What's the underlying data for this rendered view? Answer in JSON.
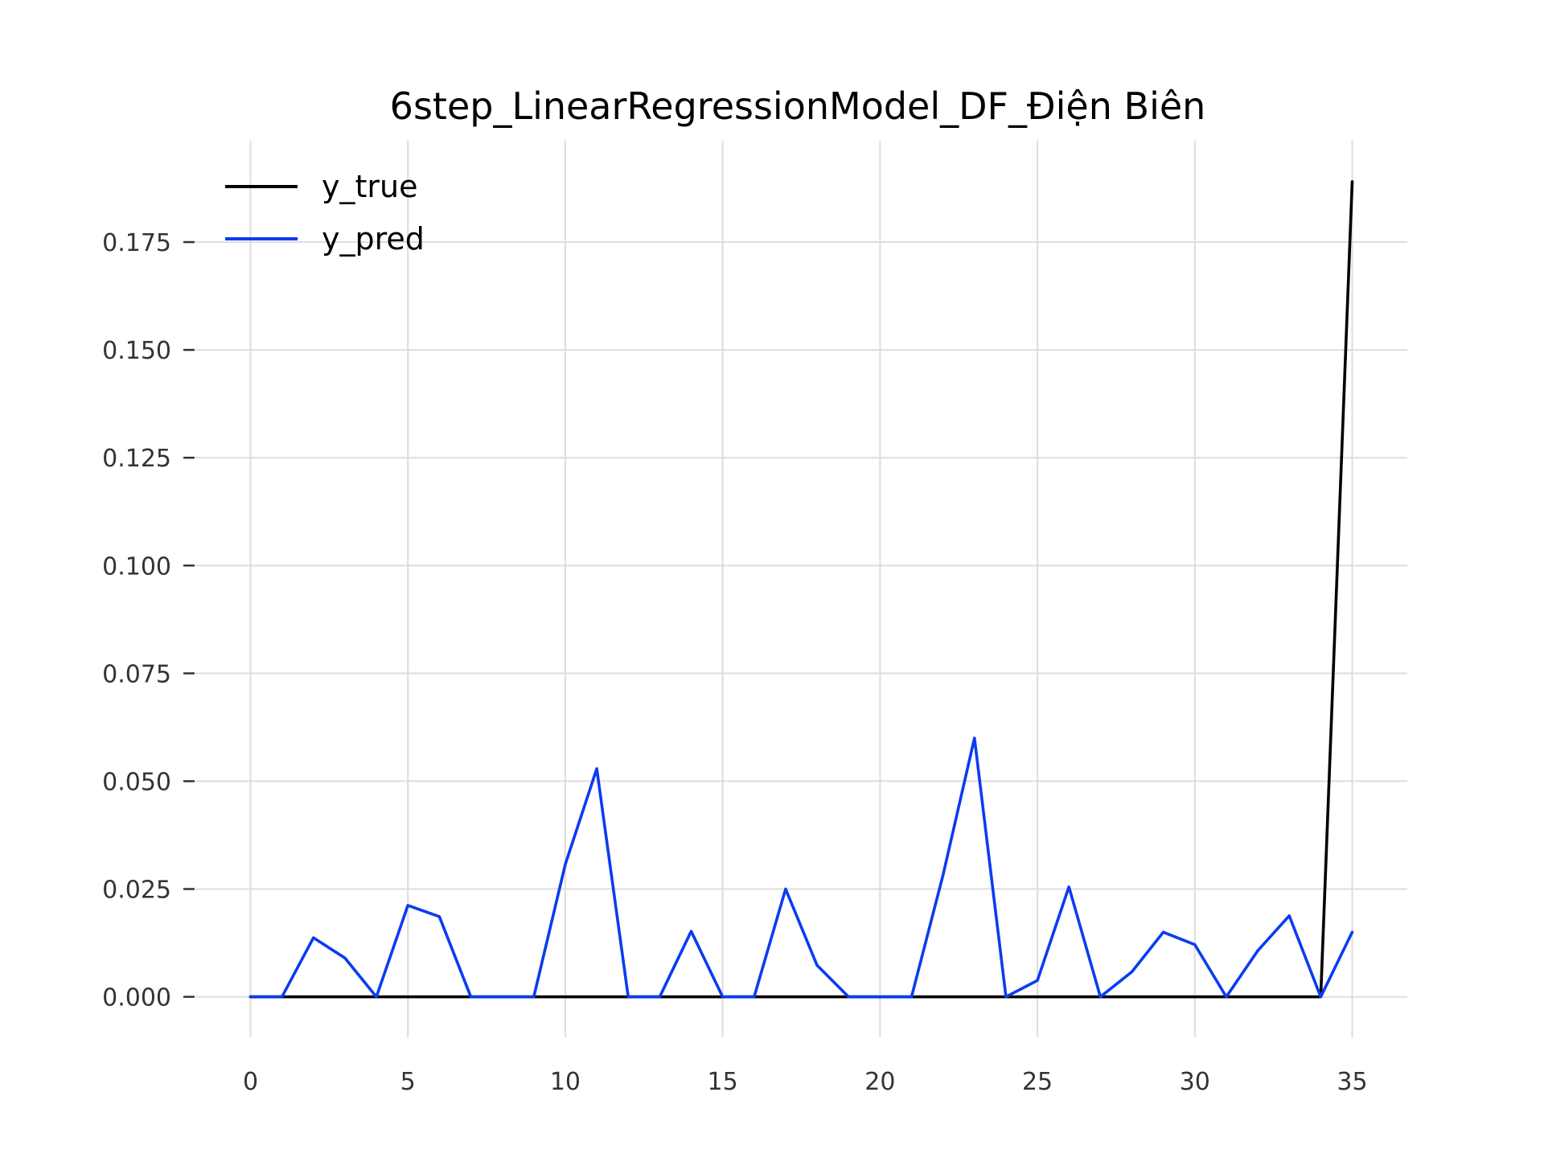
{
  "chart_data": {
    "type": "line",
    "title": "6step_LinearRegressionModel_DF_Điện Biên",
    "xlabel": "",
    "ylabel": "",
    "xlim": [
      -1.75,
      36.75
    ],
    "ylim": [
      -0.0094,
      0.1985
    ],
    "x_ticks": [
      0,
      5,
      10,
      15,
      20,
      25,
      30,
      35
    ],
    "y_ticks": [
      0.0,
      0.025,
      0.05,
      0.075,
      0.1,
      0.125,
      0.15,
      0.175
    ],
    "y_tick_labels": [
      "0.000",
      "0.025",
      "0.050",
      "0.075",
      "0.100",
      "0.125",
      "0.150",
      "0.175"
    ],
    "grid": true,
    "legend_position": "top-left",
    "x": [
      0,
      1,
      2,
      3,
      4,
      5,
      6,
      7,
      8,
      9,
      10,
      11,
      12,
      13,
      14,
      15,
      16,
      17,
      18,
      19,
      20,
      21,
      22,
      23,
      24,
      25,
      26,
      27,
      28,
      29,
      30,
      31,
      32,
      33,
      34,
      35
    ],
    "series": [
      {
        "name": "y_true",
        "color": "#000000",
        "values": [
          0,
          0,
          0,
          0,
          0,
          0,
          0,
          0,
          0,
          0,
          0,
          0,
          0,
          0,
          0,
          0,
          0,
          0,
          0,
          0,
          0,
          0,
          0,
          0,
          0,
          0,
          0,
          0,
          0,
          0,
          0,
          0,
          0,
          0,
          0,
          0.189
        ]
      },
      {
        "name": "y_pred",
        "color": "#0a3cf0",
        "values": [
          0,
          0,
          0.0137,
          0.009,
          0,
          0.0212,
          0.0186,
          0,
          0,
          0,
          0.0307,
          0.0529,
          0,
          0,
          0.0152,
          0,
          0,
          0.025,
          0.0073,
          0,
          0,
          0,
          0.0282,
          0.06,
          0,
          0.0038,
          0.0255,
          0,
          0.0058,
          0.015,
          0.0121,
          0,
          0.0107,
          0.0188,
          0,
          0.015
        ]
      }
    ]
  }
}
